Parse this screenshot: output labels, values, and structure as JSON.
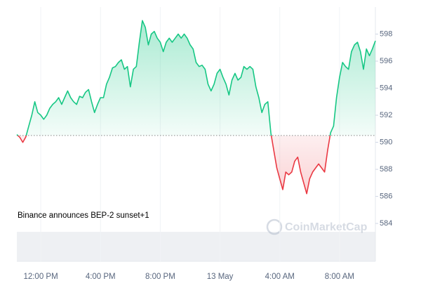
{
  "chart_data": {
    "type": "line",
    "annotation": "Binance announces BEP-2 sunset+1",
    "watermark": "CoinMarketCap",
    "categories": [
      null,
      null,
      null,
      null,
      null,
      null,
      null,
      null,
      "12:00 PM",
      null,
      null,
      null,
      null,
      null,
      null,
      null,
      null,
      null,
      null,
      null,
      null,
      null,
      null,
      null,
      null,
      null,
      null,
      null,
      "4:00 PM",
      null,
      null,
      null,
      null,
      null,
      null,
      null,
      null,
      null,
      null,
      null,
      null,
      null,
      null,
      null,
      null,
      null,
      null,
      null,
      "8:00 PM",
      null,
      null,
      null,
      null,
      null,
      null,
      null,
      null,
      null,
      null,
      null,
      null,
      null,
      null,
      null,
      null,
      null,
      null,
      null,
      "13 May",
      null,
      null,
      null,
      null,
      null,
      null,
      null,
      null,
      null,
      null,
      null,
      null,
      null,
      null,
      null,
      null,
      null,
      null,
      null,
      "4:00 AM",
      null,
      null,
      null,
      null,
      null,
      null,
      null,
      null,
      null,
      null,
      null,
      null,
      null,
      null,
      null,
      null,
      null,
      null,
      null,
      "8:00 AM",
      null,
      null,
      null,
      null,
      null,
      null,
      null,
      null,
      null,
      null,
      null,
      null
    ],
    "values": [
      590.57,
      590.36,
      590.0,
      590.4,
      591.2,
      592.0,
      593.0,
      592.2,
      592.0,
      591.7,
      592.0,
      592.5,
      592.8,
      593.0,
      593.3,
      592.8,
      593.3,
      593.8,
      593.3,
      593.0,
      592.8,
      593.4,
      593.3,
      593.7,
      593.9,
      593.0,
      592.2,
      592.8,
      593.3,
      593.3,
      594.3,
      594.8,
      595.5,
      595.6,
      595.9,
      596.1,
      595.4,
      595.6,
      594.1,
      595.4,
      595.6,
      597.4,
      599.0,
      598.5,
      597.2,
      598.0,
      598.2,
      597.7,
      597.4,
      596.7,
      597.4,
      597.7,
      597.4,
      597.7,
      598.0,
      597.7,
      598.0,
      597.7,
      597.2,
      596.9,
      595.9,
      595.6,
      595.7,
      595.4,
      594.3,
      593.8,
      594.3,
      595.1,
      595.4,
      594.8,
      594.3,
      593.5,
      594.6,
      595.1,
      594.6,
      594.8,
      595.6,
      595.4,
      595.6,
      595.4,
      594.1,
      593.3,
      592.2,
      592.8,
      593.0,
      590.7,
      589.4,
      588.1,
      587.3,
      586.5,
      587.8,
      587.6,
      587.8,
      588.6,
      588.9,
      587.8,
      587.0,
      586.2,
      587.3,
      587.8,
      588.1,
      588.4,
      588.1,
      587.8,
      589.4,
      590.7,
      591.2,
      593.3,
      594.8,
      595.9,
      595.6,
      595.4,
      596.7,
      597.2,
      597.4,
      596.7,
      595.4,
      596.9,
      596.4,
      596.9,
      597.5
    ],
    "baseline": 590.5,
    "up_color": "#16c784",
    "down_color": "#ea3943",
    "ylim": [
      581.2,
      600
    ],
    "yticks": [
      584,
      586,
      588,
      590,
      592,
      594,
      596,
      598
    ],
    "grid": true
  }
}
